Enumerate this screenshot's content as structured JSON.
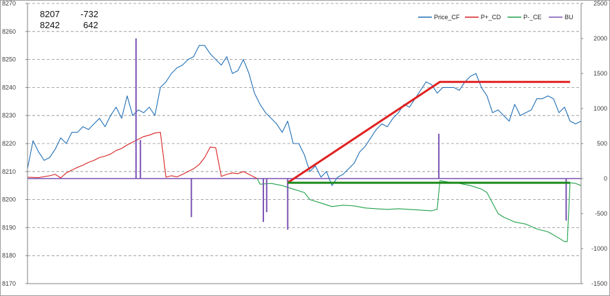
{
  "chart_data": {
    "type": "line",
    "title": "",
    "xlabel": "",
    "ylabel": "",
    "grid": true,
    "legend_position": "top-right",
    "readout": {
      "row1": [
        "8207",
        "-732"
      ],
      "row2": [
        "8242",
        "642"
      ]
    },
    "y_left": {
      "min": 8170,
      "max": 8270,
      "step": 10,
      "ticks": [
        "8270",
        "8260",
        "8250",
        "8240",
        "8230",
        "8220",
        "8210",
        "8200",
        "8190",
        "8180",
        "8170"
      ]
    },
    "y_right": {
      "min": -1500,
      "max": 2500,
      "step": 500,
      "ticks": [
        "2500",
        "2000",
        "1500",
        "1000",
        "500",
        "0",
        "-500",
        "-1000",
        "-1500"
      ]
    },
    "x_range": [
      0,
      100
    ],
    "colors": {
      "price_cf": "#1f6fb5",
      "p_plus_cd": "#d82020",
      "p_minus_ce": "#1fa04a",
      "bu": "#7a52b3",
      "trend_red": "#e02020",
      "trend_green": "#1b8a1b",
      "grid": "#8c8c8c",
      "axis": "#808080"
    },
    "series": [
      {
        "name": "Price_CF",
        "axis": "left",
        "color": "#1f6fb5",
        "points": [
          [
            0,
            8211
          ],
          [
            1,
            8221
          ],
          [
            2,
            8217
          ],
          [
            3,
            8214
          ],
          [
            4,
            8215
          ],
          [
            5,
            8218
          ],
          [
            6,
            8222
          ],
          [
            7,
            8220
          ],
          [
            8,
            8224
          ],
          [
            9,
            8224
          ],
          [
            10,
            8226
          ],
          [
            11,
            8225
          ],
          [
            12,
            8227
          ],
          [
            13,
            8229
          ],
          [
            14,
            8226
          ],
          [
            15,
            8230
          ],
          [
            16,
            8233
          ],
          [
            17,
            8229
          ],
          [
            18,
            8237
          ],
          [
            19,
            8230
          ],
          [
            20,
            8232
          ],
          [
            21,
            8231
          ],
          [
            22,
            8233
          ],
          [
            23,
            8230
          ],
          [
            24,
            8240
          ],
          [
            25,
            8242
          ],
          [
            26,
            8245
          ],
          [
            27,
            8247
          ],
          [
            28,
            8248
          ],
          [
            29,
            8250
          ],
          [
            30,
            8251
          ],
          [
            31,
            8255
          ],
          [
            32,
            8255
          ],
          [
            33,
            8252
          ],
          [
            34,
            8250
          ],
          [
            35,
            8248
          ],
          [
            36,
            8251
          ],
          [
            37,
            8245
          ],
          [
            38,
            8246
          ],
          [
            39,
            8250
          ],
          [
            40,
            8245
          ],
          [
            41,
            8238
          ],
          [
            42,
            8234
          ],
          [
            43,
            8231
          ],
          [
            44,
            8229
          ],
          [
            45,
            8227
          ],
          [
            46,
            8224
          ],
          [
            47,
            8228
          ],
          [
            48,
            8220
          ],
          [
            49,
            8220
          ],
          [
            50,
            8216
          ],
          [
            51,
            8210
          ],
          [
            52,
            8212
          ],
          [
            53,
            8208
          ],
          [
            54,
            8210
          ],
          [
            55,
            8205
          ],
          [
            56,
            8208
          ],
          [
            57,
            8209
          ],
          [
            58,
            8211
          ],
          [
            59,
            8213
          ],
          [
            60,
            8217
          ],
          [
            61,
            8219
          ],
          [
            62,
            8222
          ],
          [
            63,
            8225
          ],
          [
            64,
            8227
          ],
          [
            65,
            8226
          ],
          [
            66,
            8229
          ],
          [
            67,
            8231
          ],
          [
            68,
            8234
          ],
          [
            69,
            8233
          ],
          [
            70,
            8236
          ],
          [
            71,
            8239
          ],
          [
            72,
            8242
          ],
          [
            73,
            8241
          ],
          [
            74,
            8238
          ],
          [
            75,
            8240
          ],
          [
            76,
            8240
          ],
          [
            77,
            8240
          ],
          [
            78,
            8239
          ],
          [
            79,
            8242
          ],
          [
            80,
            8244
          ],
          [
            81,
            8245
          ],
          [
            82,
            8240
          ],
          [
            83,
            8237
          ],
          [
            84,
            8231
          ],
          [
            85,
            8232
          ],
          [
            86,
            8230
          ],
          [
            87,
            8228
          ],
          [
            88,
            8234
          ],
          [
            89,
            8230
          ],
          [
            90,
            8231
          ],
          [
            91,
            8232
          ],
          [
            92,
            8236
          ],
          [
            93,
            8236
          ],
          [
            94,
            8237
          ],
          [
            95,
            8236
          ],
          [
            96,
            8231
          ],
          [
            97,
            8233
          ],
          [
            98,
            8228
          ],
          [
            99,
            8227
          ],
          [
            100,
            8228
          ]
        ]
      },
      {
        "name": "P+_CD",
        "axis": "right",
        "color": "#d82020",
        "points": [
          [
            0,
            20
          ],
          [
            2,
            15
          ],
          [
            4,
            40
          ],
          [
            5,
            60
          ],
          [
            6,
            10
          ],
          [
            7,
            80
          ],
          [
            8,
            120
          ],
          [
            9,
            160
          ],
          [
            10,
            190
          ],
          [
            11,
            230
          ],
          [
            12,
            260
          ],
          [
            13,
            300
          ],
          [
            14,
            320
          ],
          [
            15,
            350
          ],
          [
            16,
            400
          ],
          [
            17,
            430
          ],
          [
            18,
            480
          ],
          [
            19,
            520
          ],
          [
            20,
            560
          ],
          [
            21,
            600
          ],
          [
            22,
            620
          ],
          [
            23,
            650
          ],
          [
            24,
            660
          ],
          [
            25,
            20
          ],
          [
            26,
            40
          ],
          [
            27,
            25
          ],
          [
            28,
            60
          ],
          [
            29,
            100
          ],
          [
            30,
            140
          ],
          [
            31,
            200
          ],
          [
            32,
            300
          ],
          [
            33,
            450
          ],
          [
            34,
            440
          ],
          [
            35,
            30
          ],
          [
            36,
            60
          ],
          [
            37,
            80
          ],
          [
            38,
            70
          ],
          [
            39,
            100
          ],
          [
            40,
            60
          ],
          [
            41,
            20
          ],
          [
            41.5,
            0
          ]
        ]
      },
      {
        "name": "P-_CE",
        "axis": "right",
        "color": "#1fa04a",
        "points": [
          [
            41.5,
            0
          ],
          [
            42,
            -80
          ],
          [
            44,
            -70
          ],
          [
            46,
            -100
          ],
          [
            48,
            -150
          ],
          [
            50,
            -200
          ],
          [
            51,
            -300
          ],
          [
            53,
            -350
          ],
          [
            55,
            -400
          ],
          [
            57,
            -380
          ],
          [
            59,
            -390
          ],
          [
            61,
            -420
          ],
          [
            63,
            -430
          ],
          [
            65,
            -440
          ],
          [
            67,
            -430
          ],
          [
            69,
            -440
          ],
          [
            71,
            -450
          ],
          [
            73,
            -460
          ],
          [
            74,
            -440
          ],
          [
            74.5,
            -30
          ],
          [
            76,
            -50
          ],
          [
            78,
            -70
          ],
          [
            80,
            -100
          ],
          [
            82,
            -150
          ],
          [
            83,
            -200
          ],
          [
            84,
            -350
          ],
          [
            85,
            -500
          ],
          [
            86,
            -550
          ],
          [
            88,
            -620
          ],
          [
            90,
            -650
          ],
          [
            92,
            -720
          ],
          [
            94,
            -760
          ],
          [
            96,
            -850
          ],
          [
            97,
            -900
          ],
          [
            97.5,
            -900
          ],
          [
            98,
            -60
          ],
          [
            99,
            -70
          ],
          [
            100,
            -100
          ]
        ]
      },
      {
        "name": "BU",
        "axis": "right",
        "color": "#7a52b3",
        "spikes": [
          [
            19.6,
            2000
          ],
          [
            20.4,
            550
          ],
          [
            29.6,
            -550
          ],
          [
            42.6,
            -620
          ],
          [
            43.2,
            -480
          ],
          [
            47,
            -730
          ],
          [
            74.3,
            640
          ],
          [
            97.3,
            -600
          ]
        ]
      }
    ],
    "trend_lines": [
      {
        "color": "#e02020",
        "axis": "left",
        "points": [
          [
            47,
            8206
          ],
          [
            74.5,
            8242
          ],
          [
            98,
            8242
          ]
        ]
      },
      {
        "color": "#1b8a1b",
        "axis": "left",
        "points": [
          [
            47,
            8206
          ],
          [
            98,
            8206
          ]
        ]
      }
    ]
  }
}
